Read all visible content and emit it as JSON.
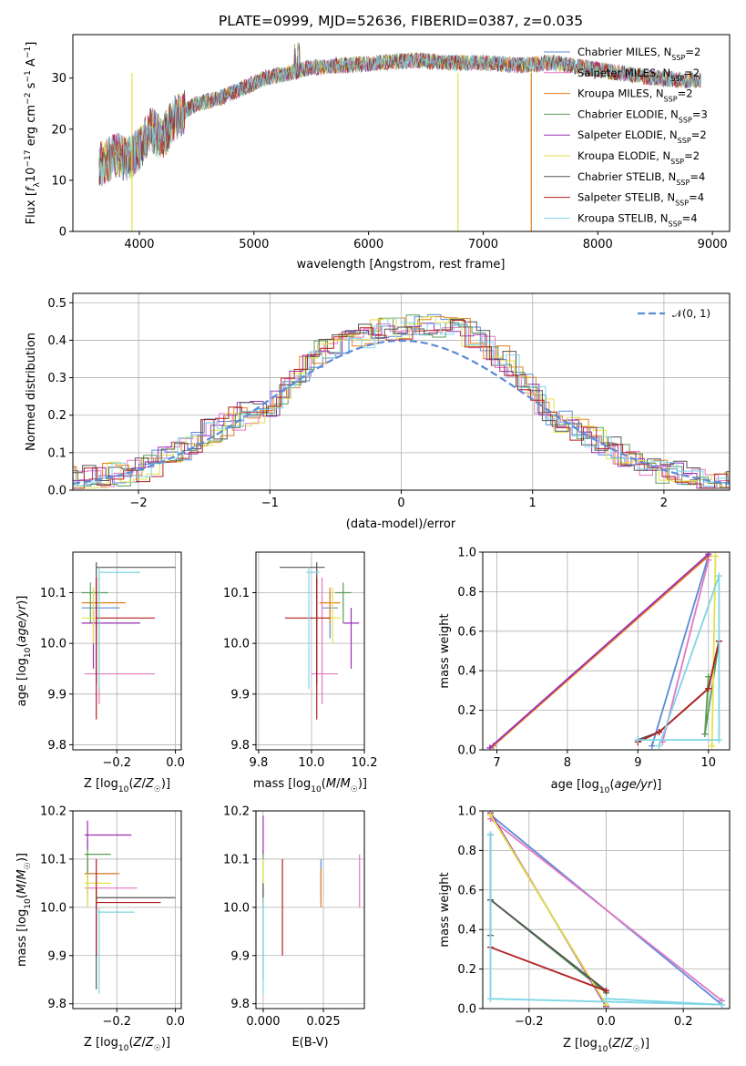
{
  "figure": {
    "title": "PLATE=0999, MJD=52636, FIBERID=0387, z=0.035"
  },
  "colors": {
    "Chabrier MILES": "#5b8bd8",
    "Salpeter MILES": "#e377c2",
    "Kroupa MILES": "#e8801c",
    "Chabrier ELODIE": "#5a9c5a",
    "Salpeter ELODIE": "#9b2fb5",
    "Kroupa ELODIE": "#e2e24a",
    "Chabrier STELIB": "#555555",
    "Salpeter STELIB": "#b21e1e",
    "Kroupa STELIB": "#7fd6e6",
    "normal_curve": "#5b8bd8",
    "grid": "#b0b0b0"
  },
  "legend_labels": [
    "Chabrier MILES, N_SSP=2",
    "Salpeter MILES, N_SSP=2",
    "Kroupa MILES, N_SSP=2",
    "Chabrier ELODIE, N_SSP=3",
    "Salpeter ELODIE, N_SSP=2",
    "Kroupa ELODIE, N_SSP=2",
    "Chabrier STELIB, N_SSP=4",
    "Salpeter STELIB, N_SSP=4",
    "Kroupa STELIB, N_SSP=4"
  ],
  "normal_legend": "𝒩(0, 1)",
  "chart_data": [
    {
      "id": "spectrum",
      "type": "line",
      "title": "PLATE=0999, MJD=52636, FIBERID=0387, z=0.035",
      "xlabel": "wavelength [Angstrom, rest frame]",
      "ylabel": "Flux [f_λ 10^-17 erg cm^-2 s^-1 A^-1]",
      "xlim": [
        3420,
        9150
      ],
      "ylim": [
        0,
        38.5
      ],
      "xticks": [
        4000,
        5000,
        6000,
        7000,
        8000,
        9000
      ],
      "yticks": [
        0,
        10,
        20,
        30
      ],
      "grid": false,
      "legend_position": "top-right",
      "series_note": "9 model fits overlaid; dense noisy spectra",
      "envelope": {
        "x": [
          3650,
          3800,
          3900,
          4000,
          4100,
          4200,
          4300,
          4500,
          4700,
          4900,
          5100,
          5300,
          5500,
          5800,
          6100,
          6400,
          6700,
          7000,
          7300,
          7600,
          7900,
          8200,
          8500,
          8800
        ],
        "y": [
          13,
          15,
          14,
          16,
          20,
          18,
          22,
          25,
          26,
          28,
          30,
          31,
          32,
          32.5,
          33,
          33.5,
          33,
          33,
          32.5,
          33,
          32,
          31,
          30,
          29.5
        ]
      },
      "features": [
        {
          "x": 3935,
          "y_min": 0
        },
        {
          "x": 6780,
          "y_min": 0
        },
        {
          "x": 7420,
          "y_min": 0
        }
      ]
    },
    {
      "id": "residuals",
      "type": "histogram",
      "xlabel": "(data-model)/error",
      "ylabel": "Normed distribution",
      "xlim": [
        -2.5,
        2.5
      ],
      "ylim": [
        0,
        0.525
      ],
      "xticks": [
        -2,
        -1,
        0,
        1,
        2
      ],
      "yticks": [
        0.0,
        0.1,
        0.2,
        0.3,
        0.4,
        0.5
      ],
      "grid": true,
      "legend_position": "top-right",
      "bin_width": 0.1,
      "profile": {
        "x": [
          -2.5,
          -2.0,
          -1.8,
          -1.5,
          -1.2,
          -1.0,
          -0.8,
          -0.6,
          -0.4,
          -0.2,
          0.0,
          0.2,
          0.4,
          0.6,
          0.8,
          1.0,
          1.2,
          1.5,
          1.8,
          2.0,
          2.5
        ],
        "y": [
          0.03,
          0.05,
          0.08,
          0.15,
          0.2,
          0.22,
          0.3,
          0.38,
          0.4,
          0.42,
          0.43,
          0.44,
          0.44,
          0.4,
          0.35,
          0.26,
          0.19,
          0.13,
          0.08,
          0.05,
          0.02
        ]
      }
    },
    {
      "id": "age-vs-Z",
      "type": "errorbar",
      "xlabel": "Z [log10(Z/Z☉)]",
      "ylabel": "age [log10(age/yr)]",
      "xlim": [
        -0.35,
        0.02
      ],
      "ylim": [
        9.79,
        10.18
      ],
      "xticks": [
        -0.2,
        0.0
      ],
      "yticks": [
        9.8,
        9.9,
        10.0,
        10.1
      ],
      "grid": true,
      "points": [
        {
          "model": "Chabrier MILES",
          "x": -0.27,
          "y": 10.07,
          "xerr": [
            0.05,
            0.08
          ],
          "yerr": [
            0.06,
            0.03
          ]
        },
        {
          "model": "Salpeter MILES",
          "x": -0.26,
          "y": 9.94,
          "xerr": [
            0.05,
            0.19
          ],
          "yerr": [
            0.06,
            0.19
          ]
        },
        {
          "model": "Kroupa MILES",
          "x": -0.28,
          "y": 10.08,
          "xerr": [
            0.04,
            0.11
          ],
          "yerr": [
            0.04,
            0.03
          ]
        },
        {
          "model": "Chabrier ELODIE",
          "x": -0.29,
          "y": 10.1,
          "xerr": [
            0.03,
            0.06
          ],
          "yerr": [
            0.06,
            0.02
          ]
        },
        {
          "model": "Salpeter ELODIE",
          "x": -0.28,
          "y": 10.04,
          "xerr": [
            0.04,
            0.16
          ],
          "yerr": [
            0.09,
            0.03
          ]
        },
        {
          "model": "Kroupa ELODIE",
          "x": -0.28,
          "y": 10.05,
          "xerr": [
            0.04,
            0.04
          ],
          "yerr": [
            0.05,
            0.06
          ]
        },
        {
          "model": "Chabrier STELIB",
          "x": -0.27,
          "y": 10.15,
          "xerr": [
            0.0,
            0.27
          ],
          "yerr": [
            0.23,
            0.01
          ]
        },
        {
          "model": "Salpeter STELIB",
          "x": -0.27,
          "y": 10.05,
          "xerr": [
            0.0,
            0.2
          ],
          "yerr": [
            0.2,
            0.08
          ]
        },
        {
          "model": "Kroupa STELIB",
          "x": -0.26,
          "y": 10.14,
          "xerr": [
            0.0,
            0.14
          ],
          "yerr": [
            0.23,
            0.01
          ]
        }
      ]
    },
    {
      "id": "age-vs-mass",
      "type": "errorbar",
      "xlabel": "mass [log10(M/M☉)]",
      "ylabel": "",
      "xlim": [
        9.79,
        10.2
      ],
      "ylim": [
        9.79,
        10.18
      ],
      "xticks": [
        9.8,
        10.0,
        10.2
      ],
      "yticks": [
        9.8,
        9.9,
        10.0,
        10.1
      ],
      "grid": true,
      "points": [
        {
          "model": "Chabrier MILES",
          "x": 10.07,
          "y": 10.07,
          "xerr": [
            0.03,
            0.03
          ],
          "yerr": [
            0.06,
            0.03
          ]
        },
        {
          "model": "Salpeter MILES",
          "x": 10.04,
          "y": 9.94,
          "xerr": [
            0.04,
            0.06
          ],
          "yerr": [
            0.06,
            0.19
          ]
        },
        {
          "model": "Kroupa MILES",
          "x": 10.07,
          "y": 10.08,
          "xerr": [
            0.04,
            0.04
          ],
          "yerr": [
            0.04,
            0.03
          ]
        },
        {
          "model": "Chabrier ELODIE",
          "x": 10.12,
          "y": 10.1,
          "xerr": [
            0.03,
            0.03
          ],
          "yerr": [
            0.06,
            0.02
          ]
        },
        {
          "model": "Salpeter ELODIE",
          "x": 10.15,
          "y": 10.04,
          "xerr": [
            0.03,
            0.03
          ],
          "yerr": [
            0.09,
            0.03
          ]
        },
        {
          "model": "Kroupa ELODIE",
          "x": 10.08,
          "y": 10.05,
          "xerr": [
            0.05,
            0.03
          ],
          "yerr": [
            0.05,
            0.06
          ]
        },
        {
          "model": "Chabrier STELIB",
          "x": 10.02,
          "y": 10.15,
          "xerr": [
            0.14,
            0.03
          ],
          "yerr": [
            0.23,
            0.01
          ]
        },
        {
          "model": "Salpeter STELIB",
          "x": 10.02,
          "y": 10.05,
          "xerr": [
            0.12,
            0.05
          ],
          "yerr": [
            0.2,
            0.08
          ]
        },
        {
          "model": "Kroupa STELIB",
          "x": 9.99,
          "y": 10.14,
          "xerr": [
            0.01,
            0.04
          ],
          "yerr": [
            0.23,
            0.01
          ]
        }
      ]
    },
    {
      "id": "mass-weight-vs-age",
      "type": "line",
      "xlabel": "age [log10(age/yr)]",
      "ylabel": "mass weight",
      "xlim": [
        6.8,
        10.3
      ],
      "ylim": [
        0,
        1.0
      ],
      "xticks": [
        7,
        8,
        9,
        10
      ],
      "yticks": [
        0.0,
        0.2,
        0.4,
        0.6,
        0.8,
        1.0
      ],
      "grid": true,
      "series": [
        {
          "model": "Chabrier MILES",
          "x": [
            10.0,
            9.2
          ],
          "y": [
            0.98,
            0.02
          ]
        },
        {
          "model": "Salpeter MILES",
          "x": [
            10.0,
            9.35
          ],
          "y": [
            0.96,
            0.04
          ]
        },
        {
          "model": "Kroupa MILES",
          "x": [
            10.0,
            6.95
          ],
          "y": [
            0.98,
            0.02
          ]
        },
        {
          "model": "Chabrier ELODIE",
          "x": [
            10.0,
            9.95,
            10.15
          ],
          "y": [
            0.37,
            0.08,
            0.55
          ]
        },
        {
          "model": "Salpeter ELODIE",
          "x": [
            10.0,
            6.9
          ],
          "y": [
            0.99,
            0.01
          ]
        },
        {
          "model": "Kroupa ELODIE",
          "x": [
            10.1,
            10.05
          ],
          "y": [
            0.98,
            0.02
          ]
        },
        {
          "model": "Chabrier STELIB",
          "x": [
            9.0,
            9.3,
            10.0,
            10.15
          ],
          "y": [
            0.05,
            0.09,
            0.31,
            0.55
          ]
        },
        {
          "model": "Salpeter STELIB",
          "x": [
            9.0,
            9.3,
            10.0,
            10.15
          ],
          "y": [
            0.04,
            0.09,
            0.31,
            0.55
          ]
        },
        {
          "model": "Kroupa STELIB",
          "x": [
            9.0,
            10.15,
            10.15,
            9.3
          ],
          "y": [
            0.05,
            0.05,
            0.88,
            0.02
          ]
        }
      ]
    },
    {
      "id": "mass-vs-Z",
      "type": "errorbar",
      "xlabel": "Z [log10(Z/Z☉)]",
      "ylabel": "mass [log10(M/M☉)]",
      "xlim": [
        -0.35,
        0.02
      ],
      "ylim": [
        9.79,
        10.2
      ],
      "xticks": [
        -0.2,
        0.0
      ],
      "yticks": [
        9.8,
        9.9,
        10.0,
        10.1,
        10.2
      ],
      "grid": true,
      "points": [
        {
          "model": "Chabrier MILES",
          "x": -0.3,
          "y": 10.07,
          "xerr": [
            0.01,
            0.1
          ],
          "yerr": [
            0.05,
            0.03
          ]
        },
        {
          "model": "Salpeter MILES",
          "x": -0.3,
          "y": 10.04,
          "xerr": [
            0.01,
            0.17
          ],
          "yerr": [
            0.04,
            0.06
          ]
        },
        {
          "model": "Kroupa MILES",
          "x": -0.3,
          "y": 10.07,
          "xerr": [
            0.01,
            0.11
          ],
          "yerr": [
            0.04,
            0.04
          ]
        },
        {
          "model": "Chabrier ELODIE",
          "x": -0.3,
          "y": 10.11,
          "xerr": [
            0.01,
            0.08
          ],
          "yerr": [
            0.05,
            0.03
          ]
        },
        {
          "model": "Salpeter ELODIE",
          "x": -0.3,
          "y": 10.15,
          "xerr": [
            0.01,
            0.15
          ],
          "yerr": [
            0.03,
            0.03
          ]
        },
        {
          "model": "Kroupa ELODIE",
          "x": -0.3,
          "y": 10.05,
          "xerr": [
            0.01,
            0.08
          ],
          "yerr": [
            0.05,
            0.02
          ]
        },
        {
          "model": "Chabrier STELIB",
          "x": -0.27,
          "y": 10.02,
          "xerr": [
            0.0,
            0.27
          ],
          "yerr": [
            0.19,
            0.02
          ]
        },
        {
          "model": "Salpeter STELIB",
          "x": -0.27,
          "y": 10.01,
          "xerr": [
            0.0,
            0.22
          ],
          "yerr": [
            0.11,
            0.09
          ]
        },
        {
          "model": "Kroupa STELIB",
          "x": -0.26,
          "y": 9.99,
          "xerr": [
            0.01,
            0.12
          ],
          "yerr": [
            0.17,
            0.01
          ]
        }
      ]
    },
    {
      "id": "mass-vs-EBV",
      "type": "errorbar",
      "xlabel": "E(B-V)",
      "ylabel": "",
      "xlim": [
        -0.003,
        0.042
      ],
      "ylim": [
        9.79,
        10.2
      ],
      "xticks": [
        0.0,
        0.025
      ],
      "yticks": [
        9.8,
        9.9,
        10.0,
        10.1,
        10.2
      ],
      "grid": true,
      "points": [
        {
          "model": "Chabrier MILES",
          "x": 0.024,
          "y": 10.07,
          "xerr": [
            0,
            0
          ],
          "yerr": [
            0.06,
            0.03
          ]
        },
        {
          "model": "Salpeter MILES",
          "x": 0.04,
          "y": 10.04,
          "xerr": [
            0,
            0
          ],
          "yerr": [
            0.04,
            0.07
          ]
        },
        {
          "model": "Kroupa MILES",
          "x": 0.024,
          "y": 10.05,
          "xerr": [
            0,
            0
          ],
          "yerr": [
            0.05,
            0.03
          ]
        },
        {
          "model": "Chabrier ELODIE",
          "x": 0.0,
          "y": 10.08,
          "xerr": [
            0,
            0
          ],
          "yerr": [
            0.07,
            0.04
          ]
        },
        {
          "model": "Salpeter ELODIE",
          "x": 0.0,
          "y": 10.15,
          "xerr": [
            0,
            0
          ],
          "yerr": [
            0.04,
            0.04
          ]
        },
        {
          "model": "Kroupa ELODIE",
          "x": 0.0,
          "y": 10.06,
          "xerr": [
            0,
            0
          ],
          "yerr": [
            0.06,
            0.04
          ]
        },
        {
          "model": "Chabrier STELIB",
          "x": 0.0,
          "y": 9.95,
          "xerr": [
            0,
            0
          ],
          "yerr": [
            0.1,
            0.1
          ]
        },
        {
          "model": "Salpeter STELIB",
          "x": 0.008,
          "y": 10.0,
          "xerr": [
            0,
            0
          ],
          "yerr": [
            0.1,
            0.1
          ]
        },
        {
          "model": "Kroupa STELIB",
          "x": 0.0,
          "y": 9.92,
          "xerr": [
            0,
            0
          ],
          "yerr": [
            0.1,
            0.1
          ]
        }
      ]
    },
    {
      "id": "mass-weight-vs-Z",
      "type": "line",
      "xlabel": "Z [log10(Z/Z☉)]",
      "ylabel": "mass weight",
      "xlim": [
        -0.32,
        0.32
      ],
      "ylim": [
        0,
        1.0
      ],
      "xticks": [
        -0.2,
        0.0,
        0.2
      ],
      "yticks": [
        0.0,
        0.2,
        0.4,
        0.6,
        0.8,
        1.0
      ],
      "grid": true,
      "series": [
        {
          "model": "Chabrier MILES",
          "x": [
            -0.3,
            0.3
          ],
          "y": [
            0.98,
            0.02
          ]
        },
        {
          "model": "Salpeter MILES",
          "x": [
            -0.3,
            0.3
          ],
          "y": [
            0.96,
            0.04
          ]
        },
        {
          "model": "Kroupa MILES",
          "x": [
            -0.3,
            0.0
          ],
          "y": [
            0.98,
            0.02
          ]
        },
        {
          "model": "Chabrier ELODIE",
          "x": [
            -0.3,
            0.0
          ],
          "y": [
            0.55,
            0.08
          ]
        },
        {
          "model": "Salpeter ELODIE",
          "x": [
            -0.3,
            0.0
          ],
          "y": [
            0.99,
            0.01
          ]
        },
        {
          "model": "Kroupa ELODIE",
          "x": [
            -0.3,
            0.0
          ],
          "y": [
            0.98,
            0.02
          ]
        },
        {
          "model": "Chabrier STELIB",
          "x": [
            -0.3,
            -0.3,
            -0.3,
            0.0
          ],
          "y": [
            0.88,
            0.37,
            0.55,
            0.09
          ]
        },
        {
          "model": "Salpeter STELIB",
          "x": [
            -0.3,
            0.0
          ],
          "y": [
            0.31,
            0.09
          ]
        },
        {
          "model": "Kroupa STELIB",
          "x": [
            -0.3,
            -0.3,
            0.3,
            0.0
          ],
          "y": [
            0.88,
            0.05,
            0.02,
            0.05
          ]
        }
      ]
    }
  ]
}
